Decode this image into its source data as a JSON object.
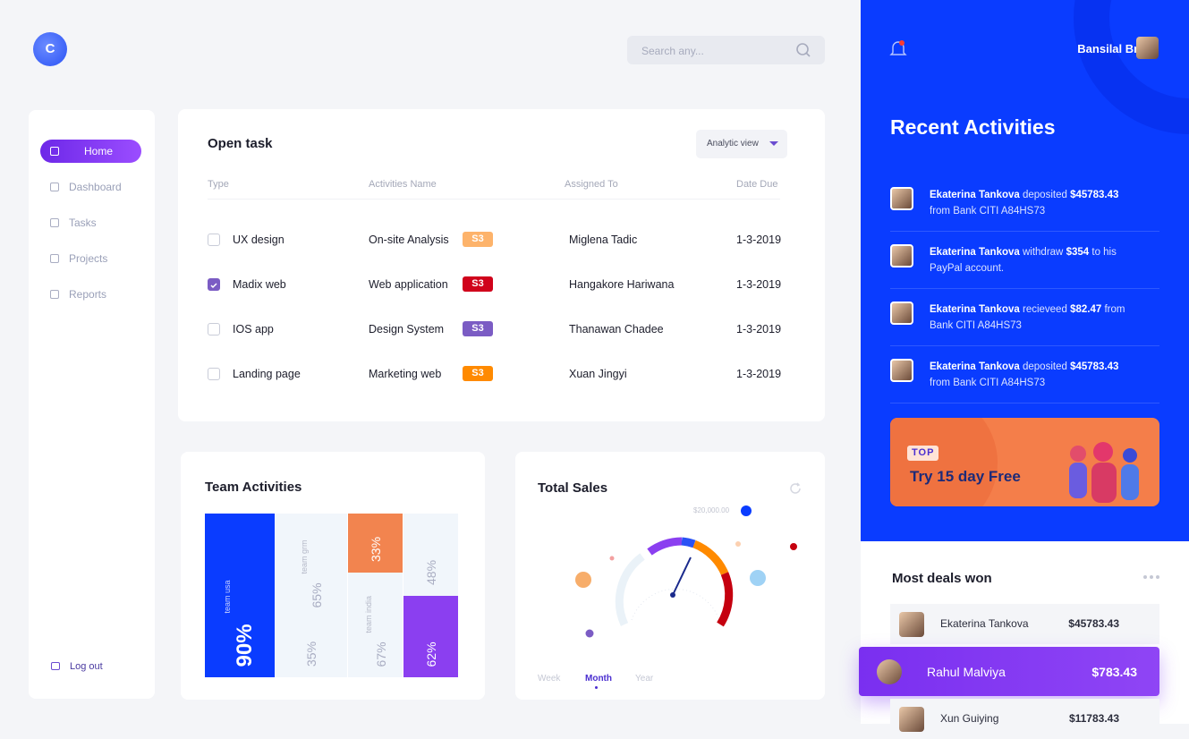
{
  "header": {
    "logo": "C",
    "search_placeholder": "Search any...",
    "user_name": "Bansilal Brata"
  },
  "nav": {
    "items": [
      "Home",
      "Dashboard",
      "Tasks",
      "Projects",
      "Reports"
    ],
    "active": 0,
    "logout": "Log out"
  },
  "open_task": {
    "title": "Open task",
    "view_button": "Analytic view",
    "columns": [
      "Type",
      "Activities Name",
      "Assigned To",
      "Date Due"
    ],
    "rows": [
      {
        "type": "UX design",
        "checked": false,
        "activity": "On-site Analysis",
        "badge": "S3",
        "badge_color": "#fdb36b",
        "assignee": "Miglena Tadic",
        "date": "1-3-2019"
      },
      {
        "type": "Madix web",
        "checked": true,
        "activity": "Web application",
        "badge": "S3",
        "badge_color": "#d0021b",
        "assignee": "Hangakore Hariwana",
        "date": "1-3-2019"
      },
      {
        "type": "IOS app",
        "checked": false,
        "activity": "Design System",
        "badge": "S3",
        "badge_color": "#7b5cc4",
        "assignee": "Thanawan Chadee",
        "date": "1-3-2019"
      },
      {
        "type": "Landing page",
        "checked": false,
        "activity": "Marketing web",
        "badge": "S3",
        "badge_color": "#ff8a00",
        "assignee": "Xuan Jingyi",
        "date": "1-3-2019"
      }
    ]
  },
  "team_activities": {
    "title": "Team Activities",
    "tiles": [
      {
        "percent": "90%",
        "team": "team usa",
        "color": "#0a3cff"
      },
      {
        "percent": "65%",
        "team": "team grm",
        "color": "#f1f6fb"
      },
      {
        "percent": "35%",
        "color": "#f1f6fb"
      },
      {
        "percent": "33%",
        "color": "#f2844f"
      },
      {
        "percent": "67%",
        "team": "team india",
        "color": "#f1f6fb"
      },
      {
        "percent": "48%",
        "color": "#f1f6fb"
      },
      {
        "percent": "62%",
        "color": "#8b3ff0"
      }
    ]
  },
  "total_sales": {
    "title": "Total Sales",
    "gauge_label": "$20,000.00",
    "tabs": [
      "Week",
      "Month",
      "Year"
    ],
    "active_tab": 1
  },
  "recent_activities": {
    "title": "Recent Activities",
    "items": [
      {
        "name": "Ekaterina Tankova",
        "action": "deposited",
        "amount": "$45783.43",
        "detail": "from Bank CITI A84HS73"
      },
      {
        "name": "Ekaterina Tankova",
        "action": "withdraw",
        "amount": "$354",
        "detail": "to his PayPal account."
      },
      {
        "name": "Ekaterina Tankova",
        "action": "recieveed",
        "amount": "$82.47",
        "detail": "from Bank CITI A84HS73"
      },
      {
        "name": "Ekaterina Tankova",
        "action": "deposited",
        "amount": "$45783.43",
        "detail": "from Bank CITI A84HS73"
      }
    ]
  },
  "promo": {
    "badge": "TOP",
    "text": "Try 15 day Free"
  },
  "deals": {
    "title": "Most deals won",
    "highlight": 1,
    "items": [
      {
        "name": "Ekaterina Tankova",
        "amount": "$45783.43"
      },
      {
        "name": "Rahul Malviya",
        "amount": "$783.43"
      },
      {
        "name": "Xun Guiying",
        "amount": "$11783.43"
      }
    ]
  }
}
